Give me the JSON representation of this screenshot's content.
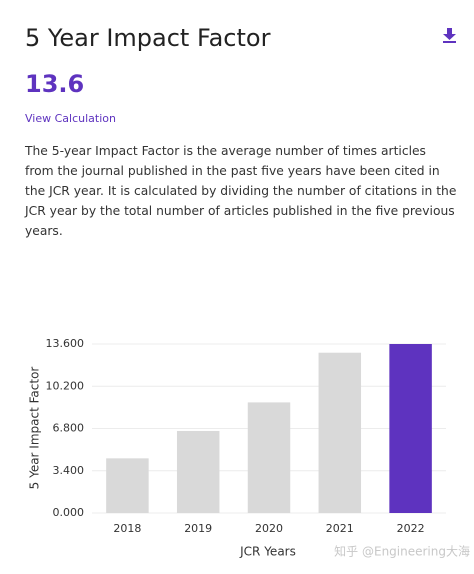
{
  "header": {
    "title": "5 Year Impact Factor",
    "value": "13.6",
    "link": "View Calculation",
    "description": "The 5-year Impact Factor is the average number of times articles from the journal published in the past five years have been cited in the JCR year. It is calculated by dividing the number of citations in the JCR year by the total number of articles published in the five previous years."
  },
  "chart_data": {
    "type": "bar",
    "x_label": "JCR Years",
    "y_label": "5 Year Impact Factor",
    "categories": [
      "2018",
      "2019",
      "2020",
      "2021",
      "2022"
    ],
    "values": [
      4.4,
      6.6,
      8.9,
      12.9,
      13.6
    ],
    "colors": [
      "#d9d9d9",
      "#d9d9d9",
      "#d9d9d9",
      "#d9d9d9",
      "#5e33bf"
    ],
    "ylim": [
      0,
      13.6
    ],
    "yticks": [
      {
        "value": 0,
        "label": "0.000"
      },
      {
        "value": 3.4,
        "label": "3.400"
      },
      {
        "value": 6.8,
        "label": "6.800"
      },
      {
        "value": 10.2,
        "label": "10.200"
      },
      {
        "value": 13.6,
        "label": "13.600"
      }
    ],
    "grid": true
  },
  "watermark": "知乎 @Engineering大海"
}
